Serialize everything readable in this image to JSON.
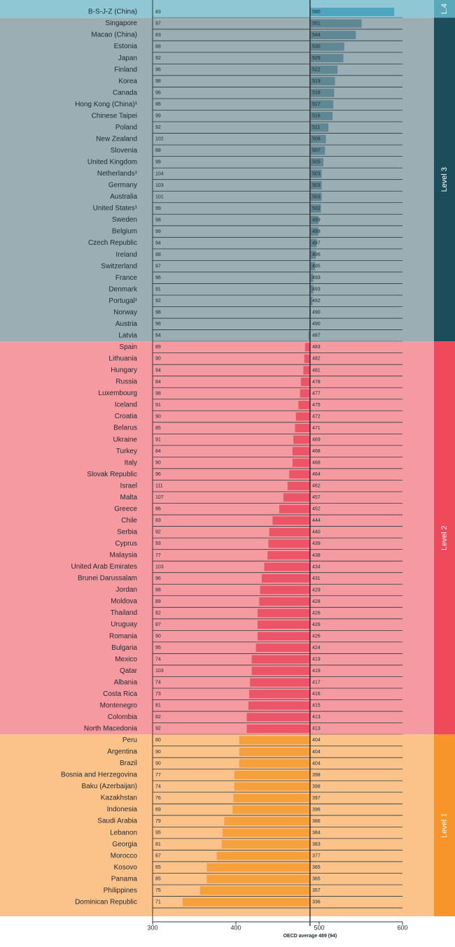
{
  "chart_data": {
    "type": "bar",
    "xlim": [
      300,
      600
    ],
    "xticks": [
      300,
      400,
      500,
      600
    ],
    "reference": {
      "value": 489,
      "label": "OECD average 489 (94)"
    },
    "levels": [
      {
        "label": "L.4",
        "color": "#4ea5bd",
        "background": "#8fc8d4",
        "tab": "#5aa9bb",
        "categories": [
          "B-S-J-Z (China)"
        ],
        "sd": [
          83
        ],
        "values": [
          590
        ]
      },
      {
        "label": "Level 3",
        "color": "#5f8894",
        "background": "#9aaeb4",
        "tab": "#1b4e5a",
        "categories": [
          "Singapore",
          "Macao (China)",
          "Estonia",
          "Japan",
          "Finland",
          "Korea",
          "Canada",
          "Hong Kong (China)¹",
          "Chinese Taipei",
          "Poland",
          "New Zealand",
          "Slovenia",
          "United Kingdom",
          "Netherlands¹",
          "Germany",
          "Australia",
          "United States¹",
          "Sweden",
          "Belgium",
          "Czech Republic",
          "Ireland",
          "Switzerland",
          "France",
          "Denmark",
          "Portugal¹",
          "Norway",
          "Austria",
          "Latvia"
        ],
        "sd": [
          97,
          83,
          88,
          92,
          96,
          98,
          96,
          86,
          99,
          92,
          102,
          88,
          99,
          104,
          103,
          101,
          99,
          98,
          99,
          94,
          88,
          97,
          96,
          91,
          92,
          98,
          96,
          84
        ],
        "values": [
          551,
          544,
          530,
          529,
          522,
          519,
          518,
          517,
          516,
          511,
          508,
          507,
          505,
          503,
          503,
          503,
          502,
          499,
          499,
          497,
          496,
          495,
          493,
          493,
          492,
          490,
          490,
          487
        ]
      },
      {
        "label": "Level 2",
        "color": "#ec5468",
        "background": "#f59aa0",
        "tab": "#ee4a5a",
        "categories": [
          "Spain",
          "Lithuania",
          "Hungary",
          "Russia",
          "Luxembourg",
          "Iceland",
          "Croatia",
          "Belarus",
          "Ukraine",
          "Turkey",
          "Italy",
          "Slovak Republic",
          "Israel",
          "Malta",
          "Greece",
          "Chile",
          "Serbia",
          "Cyprus",
          "Malaysia",
          "United Arab Emirates",
          "Brunei Darussalam",
          "Jordan",
          "Moldova",
          "Thailand",
          "Uruguay",
          "Romania",
          "Bulgaria",
          "Mexico",
          "Qatar",
          "Albania",
          "Costa Rica",
          "Montenegro",
          "Colombia",
          "North Macedonia"
        ],
        "sd": [
          89,
          90,
          94,
          84,
          98,
          91,
          90,
          85,
          91,
          84,
          90,
          96,
          111,
          107,
          86,
          83,
          92,
          93,
          77,
          103,
          96,
          88,
          89,
          82,
          87,
          90,
          95,
          74,
          103,
          74,
          73,
          81,
          82,
          92
        ],
        "values": [
          483,
          482,
          481,
          478,
          477,
          475,
          472,
          471,
          469,
          468,
          468,
          464,
          462,
          457,
          452,
          444,
          440,
          439,
          438,
          434,
          431,
          429,
          428,
          426,
          426,
          426,
          424,
          419,
          419,
          417,
          416,
          415,
          413,
          413
        ]
      },
      {
        "label": "Level 1",
        "color": "#f5a03a",
        "background": "#fbc38a",
        "tab": "#f7952a",
        "categories": [
          "Peru",
          "Argentina",
          "Brazil",
          "Bosnia and Herzegovina",
          "Baku (Azerbaijan)",
          "Kazakhstan",
          "Indonesia",
          "Saudi Arabia",
          "Lebanon",
          "Georgia",
          "Morocco",
          "Kosovo",
          "Panama",
          "Philippines",
          "Dominican Republic"
        ],
        "sd": [
          80,
          90,
          90,
          77,
          74,
          76,
          69,
          79,
          95,
          81,
          67,
          65,
          85,
          75,
          71
        ],
        "values": [
          404,
          404,
          404,
          398,
          398,
          397,
          396,
          386,
          384,
          383,
          377,
          365,
          365,
          357,
          336
        ]
      }
    ]
  }
}
